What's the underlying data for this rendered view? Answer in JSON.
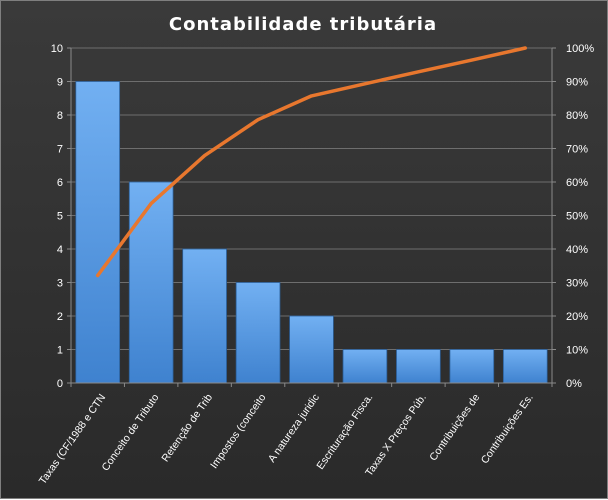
{
  "chart_data": {
    "type": "bar",
    "title": "Contabilidade  tributária",
    "categories": [
      "Taxas (CF/1988 e CTN",
      "Conceito de Tributo",
      "Retenção de Trib",
      "Impostos (conceito",
      "A natureza juridic",
      "Escrituração Fisca.",
      "Taxas X Preços Púb.",
      "Contribuições de",
      "Contribuições Es."
    ],
    "series": [
      {
        "type": "bar",
        "axis": "primary",
        "values": [
          9,
          6,
          4,
          3,
          2,
          1,
          1,
          1,
          1
        ]
      },
      {
        "type": "line",
        "axis": "secondary",
        "values": [
          32.1,
          53.6,
          67.9,
          78.6,
          85.7,
          89.3,
          92.9,
          96.4,
          100
        ]
      }
    ],
    "ylim": [
      0,
      10
    ],
    "yticks": [
      "0",
      "1",
      "2",
      "3",
      "4",
      "5",
      "6",
      "7",
      "8",
      "9",
      "10"
    ],
    "y2lim": [
      0,
      100
    ],
    "y2ticks": [
      "0%",
      "10%",
      "20%",
      "30%",
      "40%",
      "50%",
      "60%",
      "70%",
      "80%",
      "90%",
      "100%"
    ],
    "grid": true,
    "legend": "none",
    "colors": {
      "bar": "#4a8fd8",
      "bar_light": "#6aaaf0",
      "line": "#e8772e",
      "grid": "#6e6e6e",
      "text": "#ffffff"
    }
  }
}
